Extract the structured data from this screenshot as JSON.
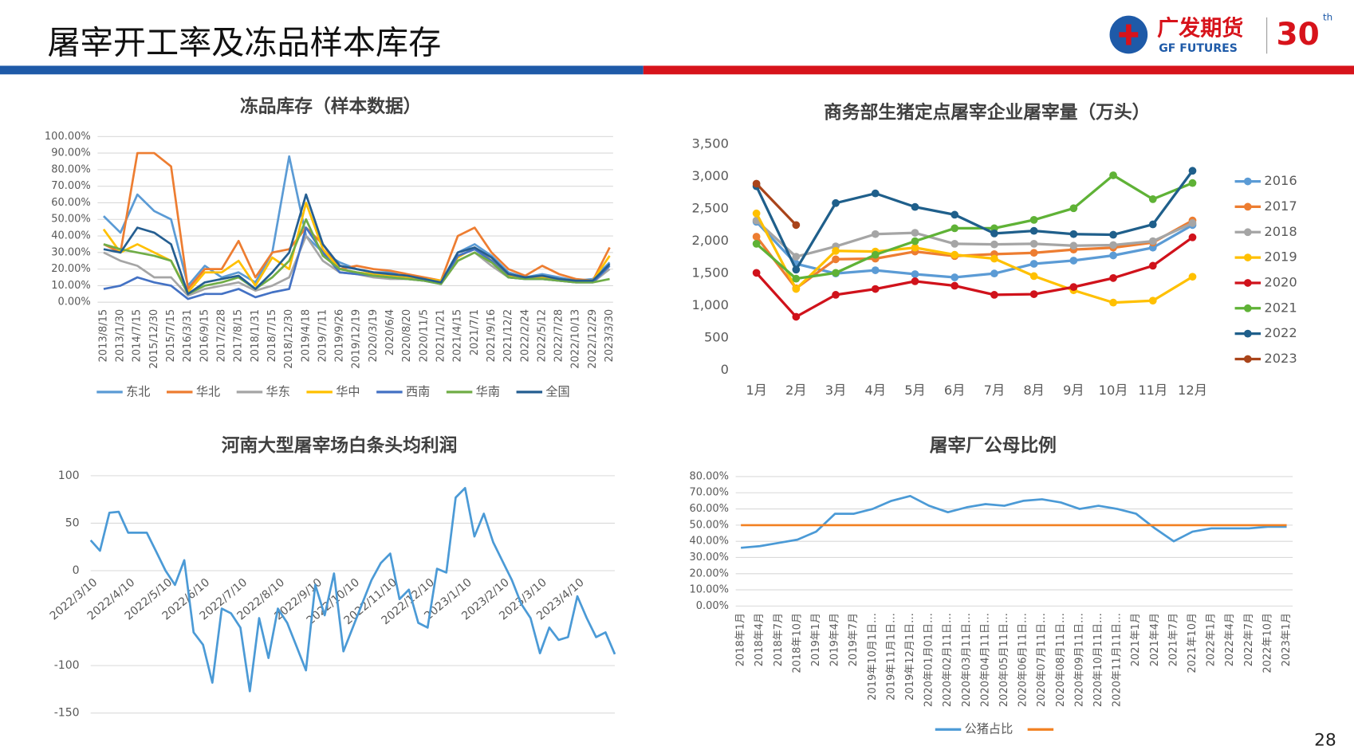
{
  "header": {
    "title": "屠宰开工率及冻品样本库存",
    "logo_cn": "广发期货",
    "logo_en": "GF FUTURES",
    "anniversary": "30",
    "anniversary_suffix": "th"
  },
  "page_number": "28",
  "chart_data": [
    {
      "type": "line",
      "title": "冻品库存（样本数据）",
      "legend": "bottom",
      "grid": true,
      "categories": [
        "2013/8/15",
        "2013/1/30",
        "2014/7/15",
        "2015/12/30",
        "2015/7/15",
        "2016/3/31",
        "2016/9/15",
        "2017/2/28",
        "2017/8/15",
        "2018/1/31",
        "2018/7/15",
        "2018/12/30",
        "2019/4/18",
        "2019/7/11",
        "2019/9/26",
        "2019/12/19",
        "2020/3/19",
        "2020/6/4",
        "2020/8/20",
        "2020/11/5",
        "2021/1/21",
        "2021/4/15",
        "2021/7/1",
        "2021/9/16",
        "2021/12/2",
        "2022/2/24",
        "2022/5/12",
        "2022/7/28",
        "2022/10/13",
        "2022/12/29",
        "2023/3/30"
      ],
      "ylim": [
        0,
        100
      ],
      "yticks": [
        {
          "value": 0,
          "label": "0.00%"
        },
        {
          "value": 10,
          "label": "10.00%"
        },
        {
          "value": 20,
          "label": "20.00%"
        },
        {
          "value": 30,
          "label": "30.00%"
        },
        {
          "value": 40,
          "label": "40.00%"
        },
        {
          "value": 50,
          "label": "50.00%"
        },
        {
          "value": 60,
          "label": "60.00%"
        },
        {
          "value": 70,
          "label": "70.00%"
        },
        {
          "value": 80,
          "label": "80.00%"
        },
        {
          "value": 90,
          "label": "90.00%"
        },
        {
          "value": 100,
          "label": "100.00%"
        }
      ],
      "series": [
        {
          "name": "东北",
          "color": "#5b9bd5",
          "values": [
            52,
            42,
            65,
            55,
            50,
            10,
            22,
            15,
            18,
            12,
            30,
            88,
            40,
            30,
            24,
            20,
            18,
            18,
            15,
            13,
            12,
            30,
            35,
            28,
            18,
            15,
            17,
            15,
            13,
            14,
            24
          ]
        },
        {
          "name": "华北",
          "color": "#ed7d31",
          "values": [
            35,
            30,
            90,
            90,
            82,
            8,
            20,
            20,
            37,
            15,
            30,
            32,
            45,
            35,
            20,
            22,
            20,
            19,
            17,
            15,
            13,
            40,
            45,
            30,
            20,
            16,
            22,
            17,
            14,
            13,
            33
          ]
        },
        {
          "name": "华东",
          "color": "#a5a5a5",
          "values": [
            30,
            25,
            22,
            15,
            15,
            4,
            8,
            10,
            12,
            7,
            10,
            15,
            40,
            25,
            18,
            17,
            15,
            14,
            14,
            13,
            11,
            25,
            30,
            22,
            15,
            14,
            14,
            13,
            12,
            12,
            20
          ]
        },
        {
          "name": "华中",
          "color": "#ffc000",
          "values": [
            44,
            30,
            35,
            30,
            25,
            6,
            18,
            18,
            25,
            10,
            27,
            20,
            60,
            32,
            20,
            18,
            17,
            16,
            15,
            14,
            13,
            27,
            33,
            25,
            16,
            15,
            15,
            14,
            13,
            13,
            28
          ]
        },
        {
          "name": "西南",
          "color": "#4472c4",
          "values": [
            8,
            10,
            15,
            12,
            10,
            2,
            5,
            5,
            8,
            3,
            6,
            8,
            45,
            30,
            18,
            17,
            16,
            15,
            14,
            13,
            11,
            28,
            32,
            25,
            15,
            14,
            14,
            13,
            12,
            12,
            22
          ]
        },
        {
          "name": "华南",
          "color": "#70ad47",
          "values": [
            35,
            32,
            30,
            28,
            25,
            5,
            10,
            12,
            15,
            8,
            15,
            25,
            50,
            28,
            20,
            18,
            16,
            15,
            14,
            13,
            11,
            25,
            30,
            24,
            15,
            14,
            14,
            13,
            12,
            12,
            14
          ]
        },
        {
          "name": "全国",
          "color": "#255e91",
          "values": [
            32,
            30,
            45,
            42,
            35,
            5,
            12,
            14,
            16,
            8,
            18,
            30,
            65,
            35,
            22,
            20,
            18,
            17,
            16,
            14,
            12,
            30,
            33,
            27,
            17,
            15,
            16,
            14,
            13,
            13,
            23
          ]
        }
      ]
    },
    {
      "type": "line",
      "title": "商务部生猪定点屠宰企业屠宰量（万头）",
      "legend": "right",
      "grid": false,
      "markers": true,
      "categories": [
        "1月",
        "2月",
        "3月",
        "4月",
        "5月",
        "6月",
        "7月",
        "8月",
        "9月",
        "10月",
        "11月",
        "12月"
      ],
      "ylim": [
        0,
        3500
      ],
      "yticks": [
        0,
        500,
        {
          "value": 1000,
          "label": "1,000"
        },
        {
          "value": 1500,
          "label": "1,500"
        },
        {
          "value": 2000,
          "label": "2,000"
        },
        {
          "value": 2500,
          "label": "2,500"
        },
        {
          "value": 3000,
          "label": "3,000"
        },
        {
          "value": 3500,
          "label": "3,500"
        }
      ],
      "series": [
        {
          "name": "2016",
          "color": "#5b9bd5",
          "values": [
            2300,
            1650,
            1500,
            1550,
            1490,
            1440,
            1500,
            1650,
            1700,
            1780,
            1900,
            2250
          ]
        },
        {
          "name": "2017",
          "color": "#ed7d31",
          "values": [
            2070,
            1270,
            1720,
            1730,
            1840,
            1770,
            1800,
            1820,
            1870,
            1900,
            1980,
            2320
          ]
        },
        {
          "name": "2018",
          "color": "#a5a5a5",
          "values": [
            2320,
            1760,
            1920,
            2110,
            2130,
            1960,
            1950,
            1960,
            1930,
            1940,
            2000,
            2280
          ]
        },
        {
          "name": "2019",
          "color": "#ffc000",
          "values": [
            2430,
            1260,
            1850,
            1840,
            1900,
            1790,
            1730,
            1460,
            1240,
            1050,
            1080,
            1450
          ]
        },
        {
          "name": "2020",
          "color": "#d0121b",
          "values": [
            1510,
            830,
            1170,
            1260,
            1380,
            1310,
            1170,
            1180,
            1290,
            1430,
            1620,
            2060
          ]
        },
        {
          "name": "2021",
          "color": "#5fb236",
          "values": [
            1960,
            1420,
            1510,
            1790,
            2000,
            2200,
            2200,
            2330,
            2510,
            3020,
            2650,
            2900
          ]
        },
        {
          "name": "2022",
          "color": "#1f5f8b",
          "values": [
            2850,
            1560,
            2590,
            2740,
            2530,
            2410,
            2120,
            2160,
            2110,
            2100,
            2260,
            3090
          ]
        },
        {
          "name": "2023",
          "color": "#a9441a",
          "values": [
            2890,
            2250,
            null,
            null,
            null,
            null,
            null,
            null,
            null,
            null,
            null,
            null
          ]
        }
      ]
    },
    {
      "type": "line",
      "title": "河南大型屠宰场白条头均利润",
      "grid": true,
      "categories": [
        "2022/3/10",
        null,
        null,
        null,
        "2022/4/10",
        null,
        null,
        null,
        "2022/5/10",
        null,
        null,
        null,
        "2022/6/10",
        null,
        null,
        null,
        "2022/7/10",
        null,
        null,
        null,
        "2022/8/10",
        null,
        null,
        null,
        "2022/9/10",
        null,
        null,
        null,
        "2022/10/10",
        null,
        null,
        null,
        "2022/11/10",
        null,
        null,
        null,
        "2022/12/10",
        null,
        null,
        null,
        "2023/1/10",
        null,
        null,
        null,
        "2023/2/10",
        null,
        null,
        null,
        "2023/3/10",
        null,
        null,
        null,
        "2023/4/10",
        null,
        null,
        null,
        null
      ],
      "ylim": [
        -150,
        100
      ],
      "yticks": [
        100,
        50,
        0,
        -100,
        -150
      ],
      "series": [
        {
          "color": "#4b9ad6",
          "values": [
            32,
            21,
            61,
            62,
            40,
            40,
            40,
            20,
            0,
            -15,
            11,
            -65,
            -78,
            -118,
            -40,
            -45,
            -60,
            -127,
            -50,
            -92,
            -40,
            -55,
            -80,
            -105,
            -15,
            -47,
            -3,
            -85,
            -60,
            -35,
            -10,
            8,
            18,
            -30,
            -20,
            -55,
            -60,
            2,
            -2,
            77,
            87,
            36,
            60,
            30,
            10,
            -10,
            -35,
            -50,
            -87,
            -60,
            -73,
            -70,
            -27,
            -50,
            -70,
            -65,
            -88
          ]
        }
      ]
    },
    {
      "type": "line",
      "title": "屠宰厂公母比例",
      "legend": "bottom",
      "grid": true,
      "categories": [
        "2018年1月",
        "2018年4月",
        "2018年7月",
        "2018年10月",
        "2019年1月",
        "2019年4月",
        "2019年7月",
        "2019年10月1日…",
        "2019年11月1日…",
        "2019年12月1日…",
        "2020年01月01日…",
        "2020年02月11日…",
        "2020年03月11日…",
        "2020年04月11日…",
        "2020年05月11日…",
        "2020年06月11日…",
        "2020年07月11日…",
        "2020年08月11日…",
        "2020年09月11日…",
        "2020年10月11日…",
        "2020年11月11日…",
        "2021年1月",
        "2021年4月",
        "2021年7月",
        "2021年10月",
        "2022年1月",
        "2022年4月",
        "2022年7月",
        "2022年10月",
        "2023年1月"
      ],
      "ylim": [
        0,
        80
      ],
      "yticks": [
        {
          "value": 0,
          "label": "0.00%"
        },
        {
          "value": 10,
          "label": "10.00%"
        },
        {
          "value": 20,
          "label": "20.00%"
        },
        {
          "value": 30,
          "label": "30.00%"
        },
        {
          "value": 40,
          "label": "40.00%"
        },
        {
          "value": 50,
          "label": "50.00%"
        },
        {
          "value": 60,
          "label": "60.00%"
        },
        {
          "value": 70,
          "label": "70.00%"
        },
        {
          "value": 80,
          "label": "80.00%"
        }
      ],
      "series": [
        {
          "name": "公猪占比",
          "color": "#4b9ad6",
          "values": [
            36,
            37,
            39,
            41,
            46,
            57,
            57,
            60,
            65,
            68,
            62,
            58,
            61,
            63,
            62,
            65,
            66,
            64,
            60,
            62,
            60,
            57,
            48,
            40,
            46,
            48,
            48,
            48,
            49,
            49
          ]
        },
        {
          "color": "#f28021",
          "values": [
            50,
            50,
            50,
            50,
            50,
            50,
            50,
            50,
            50,
            50,
            50,
            50,
            50,
            50,
            50,
            50,
            50,
            50,
            50,
            50,
            50,
            50,
            50,
            50,
            50,
            50,
            50,
            50,
            50,
            50
          ]
        }
      ]
    }
  ]
}
